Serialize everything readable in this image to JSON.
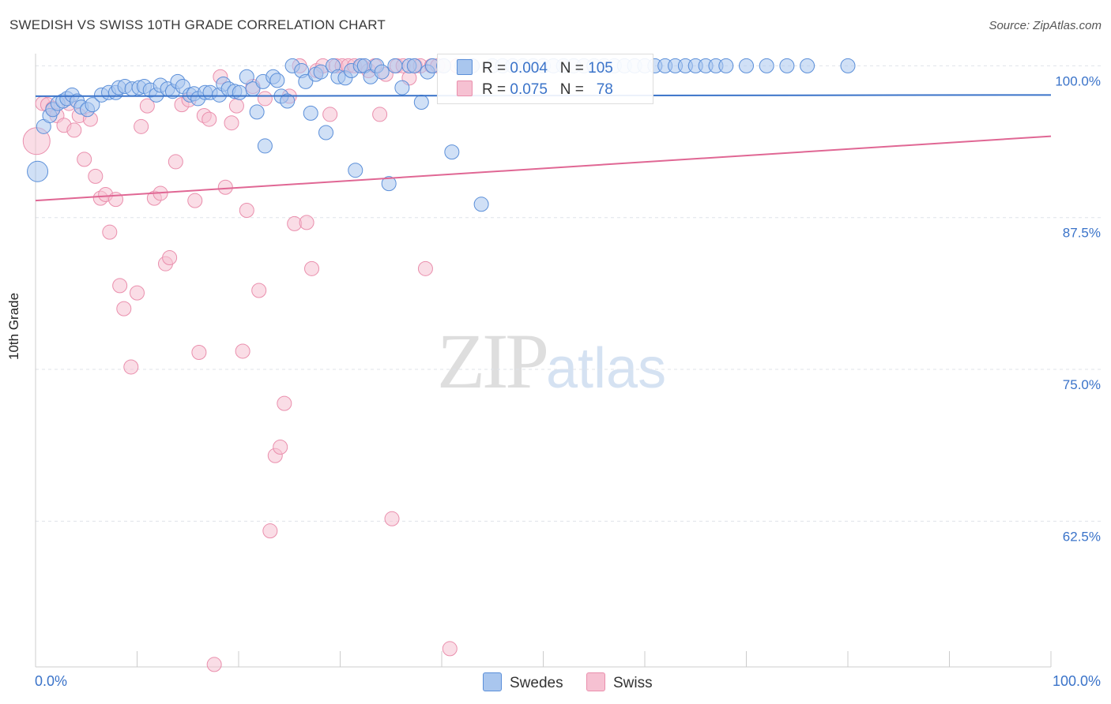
{
  "title": "SWEDISH VS SWISS 10TH GRADE CORRELATION CHART",
  "source": "Source: ZipAtlas.com",
  "watermark": {
    "zip": "ZIP",
    "atlas": "atlas"
  },
  "colors": {
    "swedes_fill": "#a9c6ee",
    "swedes_stroke": "#5b8fd9",
    "swedes_line": "#3a73c9",
    "swiss_fill": "#f6c1d2",
    "swiss_stroke": "#ea8fad",
    "swiss_line": "#e06794",
    "grid": "#dfe3ea",
    "tick_label": "#3a73c9"
  },
  "legend": {
    "swedes": {
      "r_label": "R =",
      "r_value": "0.004",
      "n_label": "N =",
      "n_value": "105"
    },
    "swiss": {
      "r_label": "R =",
      "r_value": "0.075",
      "n_label": "N =",
      "n_value": "78"
    }
  },
  "chart_data": {
    "type": "scatter",
    "title": "SWEDISH VS SWISS 10TH GRADE CORRELATION CHART",
    "xlabel": "",
    "ylabel": "10th Grade",
    "xlim": [
      0,
      100
    ],
    "ylim": [
      50.5,
      101
    ],
    "x_tick_labels": [
      "0.0%",
      "100.0%"
    ],
    "y_ticks": [
      100,
      87.5,
      75,
      62.5
    ],
    "y_tick_labels": [
      "100.0%",
      "87.5%",
      "75.0%",
      "62.5%"
    ],
    "grid": true,
    "legend_position": "bottom-center",
    "series": [
      {
        "name": "Swedes",
        "trend": [
          97.5,
          97.6
        ],
        "points": [
          [
            0.2,
            91.3
          ],
          [
            0.8,
            95.0
          ],
          [
            1.4,
            95.9
          ],
          [
            1.7,
            96.4
          ],
          [
            2.2,
            96.9
          ],
          [
            2.7,
            97.1
          ],
          [
            3.1,
            97.3
          ],
          [
            3.6,
            97.6
          ],
          [
            4.1,
            97.1
          ],
          [
            4.5,
            96.6
          ],
          [
            5.1,
            96.4
          ],
          [
            5.6,
            96.8
          ],
          [
            6.5,
            97.6
          ],
          [
            7.2,
            97.8
          ],
          [
            7.9,
            97.8
          ],
          [
            8.2,
            98.2
          ],
          [
            8.8,
            98.3
          ],
          [
            9.5,
            98.1
          ],
          [
            10.2,
            98.2
          ],
          [
            10.7,
            98.3
          ],
          [
            11.3,
            98.0
          ],
          [
            11.9,
            97.6
          ],
          [
            12.3,
            98.4
          ],
          [
            13.0,
            98.1
          ],
          [
            13.5,
            97.9
          ],
          [
            14.0,
            98.7
          ],
          [
            14.5,
            98.3
          ],
          [
            15.2,
            97.6
          ],
          [
            15.6,
            97.7
          ],
          [
            16.0,
            97.3
          ],
          [
            16.7,
            97.8
          ],
          [
            17.2,
            97.8
          ],
          [
            18.1,
            97.6
          ],
          [
            18.5,
            98.5
          ],
          [
            19.0,
            98.1
          ],
          [
            19.6,
            97.9
          ],
          [
            20.1,
            97.8
          ],
          [
            20.8,
            99.1
          ],
          [
            21.4,
            98.1
          ],
          [
            21.8,
            96.2
          ],
          [
            22.4,
            98.7
          ],
          [
            22.6,
            93.4
          ],
          [
            23.4,
            99.1
          ],
          [
            23.8,
            98.8
          ],
          [
            24.2,
            97.5
          ],
          [
            24.8,
            97.1
          ],
          [
            25.3,
            100.0
          ],
          [
            26.2,
            99.6
          ],
          [
            26.6,
            98.7
          ],
          [
            27.1,
            96.1
          ],
          [
            27.6,
            99.3
          ],
          [
            28.1,
            99.5
          ],
          [
            28.6,
            94.5
          ],
          [
            29.3,
            100.0
          ],
          [
            29.8,
            99.1
          ],
          [
            30.5,
            99.0
          ],
          [
            31.1,
            99.6
          ],
          [
            31.5,
            91.4
          ],
          [
            32.0,
            100.0
          ],
          [
            32.4,
            100.0
          ],
          [
            33.0,
            99.1
          ],
          [
            33.6,
            100.0
          ],
          [
            34.1,
            99.5
          ],
          [
            34.8,
            90.3
          ],
          [
            35.4,
            100.0
          ],
          [
            36.1,
            98.2
          ],
          [
            36.8,
            100.0
          ],
          [
            37.3,
            100.0
          ],
          [
            38.0,
            97.0
          ],
          [
            38.6,
            99.5
          ],
          [
            39.1,
            100.0
          ],
          [
            40.2,
            100.0
          ],
          [
            41.0,
            92.9
          ],
          [
            42.0,
            100.0
          ],
          [
            43.0,
            100.0
          ],
          [
            43.9,
            88.6
          ],
          [
            45.0,
            100.0
          ],
          [
            46.0,
            100.0
          ],
          [
            47.0,
            100.0
          ],
          [
            48.0,
            100.0
          ],
          [
            49.0,
            100.0
          ],
          [
            50.0,
            100.0
          ],
          [
            51.0,
            100.0
          ],
          [
            52.0,
            100.0
          ],
          [
            53.0,
            100.0
          ],
          [
            54.0,
            100.0
          ],
          [
            55.0,
            100.0
          ],
          [
            56.0,
            100.0
          ],
          [
            57.0,
            100.0
          ],
          [
            58.0,
            100.0
          ],
          [
            59.0,
            100.0
          ],
          [
            60.0,
            100.0
          ],
          [
            61.0,
            100.0
          ],
          [
            62.0,
            100.0
          ],
          [
            63.0,
            100.0
          ],
          [
            64.0,
            100.0
          ],
          [
            65.0,
            100.0
          ],
          [
            66.0,
            100.0
          ],
          [
            67.0,
            100.0
          ],
          [
            68.0,
            100.0
          ],
          [
            70.0,
            100.0
          ],
          [
            72.0,
            100.0
          ],
          [
            74.0,
            100.0
          ],
          [
            76.0,
            100.0
          ],
          [
            80.0,
            100.0
          ]
        ]
      },
      {
        "name": "Swiss",
        "trend": [
          88.9,
          94.2
        ],
        "points": [
          [
            0.1,
            93.8
          ],
          [
            0.7,
            96.9
          ],
          [
            1.2,
            96.8
          ],
          [
            1.7,
            96.5
          ],
          [
            2.1,
            95.9
          ],
          [
            2.8,
            95.1
          ],
          [
            3.3,
            96.9
          ],
          [
            3.8,
            94.7
          ],
          [
            4.3,
            95.9
          ],
          [
            4.8,
            92.3
          ],
          [
            5.4,
            95.6
          ],
          [
            5.9,
            90.9
          ],
          [
            6.4,
            89.1
          ],
          [
            6.9,
            89.4
          ],
          [
            7.3,
            86.3
          ],
          [
            7.9,
            89.0
          ],
          [
            8.3,
            81.9
          ],
          [
            8.7,
            80.0
          ],
          [
            9.4,
            75.2
          ],
          [
            10.0,
            81.3
          ],
          [
            10.4,
            95.0
          ],
          [
            11.0,
            96.7
          ],
          [
            11.7,
            89.1
          ],
          [
            12.3,
            89.5
          ],
          [
            12.8,
            83.7
          ],
          [
            13.2,
            84.2
          ],
          [
            13.8,
            92.1
          ],
          [
            14.4,
            96.8
          ],
          [
            15.1,
            97.2
          ],
          [
            15.7,
            88.9
          ],
          [
            16.1,
            76.4
          ],
          [
            16.6,
            95.9
          ],
          [
            17.1,
            95.6
          ],
          [
            17.6,
            50.7
          ],
          [
            18.2,
            99.1
          ],
          [
            18.7,
            90.0
          ],
          [
            19.3,
            95.3
          ],
          [
            19.8,
            96.7
          ],
          [
            20.4,
            76.5
          ],
          [
            20.8,
            88.1
          ],
          [
            21.4,
            98.3
          ],
          [
            22.0,
            81.5
          ],
          [
            22.6,
            97.3
          ],
          [
            23.1,
            61.7
          ],
          [
            23.6,
            67.9
          ],
          [
            24.1,
            68.6
          ],
          [
            24.5,
            72.2
          ],
          [
            25.0,
            97.5
          ],
          [
            25.5,
            87.0
          ],
          [
            26.0,
            100.0
          ],
          [
            26.7,
            87.1
          ],
          [
            27.2,
            83.3
          ],
          [
            27.7,
            99.6
          ],
          [
            28.3,
            100.0
          ],
          [
            29.0,
            96.0
          ],
          [
            29.6,
            100.0
          ],
          [
            30.2,
            100.0
          ],
          [
            30.8,
            100.0
          ],
          [
            31.4,
            100.0
          ],
          [
            32.1,
            100.0
          ],
          [
            32.8,
            99.6
          ],
          [
            33.4,
            100.0
          ],
          [
            33.9,
            96.0
          ],
          [
            34.5,
            99.3
          ],
          [
            35.1,
            62.7
          ],
          [
            35.6,
            100.0
          ],
          [
            36.2,
            100.0
          ],
          [
            36.8,
            99.0
          ],
          [
            37.4,
            100.0
          ],
          [
            37.9,
            100.0
          ],
          [
            38.4,
            83.3
          ],
          [
            39.0,
            100.0
          ],
          [
            39.6,
            100.0
          ],
          [
            40.2,
            100.0
          ],
          [
            40.8,
            52.0
          ],
          [
            41.5,
            100.0
          ],
          [
            42.2,
            100.0
          ],
          [
            43.0,
            100.0
          ]
        ]
      }
    ]
  },
  "bottom_legend": [
    "Swedes",
    "Swiss"
  ]
}
